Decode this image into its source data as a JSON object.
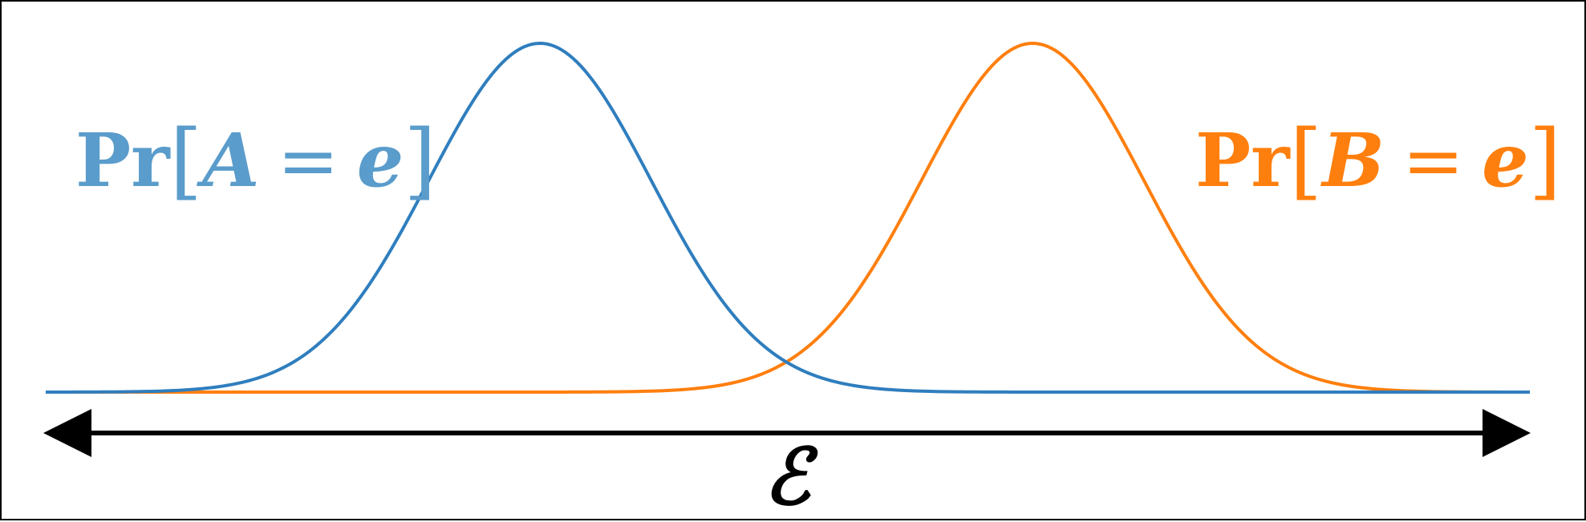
{
  "colors": {
    "distribution_a": "#2F7EBE",
    "distribution_a_label": "#5A9CCB",
    "distribution_b": "#FF7F0E",
    "domain_arrow": "#000000"
  },
  "label_a": {
    "prefix": "Pr",
    "open": "[",
    "variable": "A",
    "equals": "=",
    "value": "e",
    "close": "]"
  },
  "label_b": {
    "prefix": "Pr",
    "open": "[",
    "variable": "B",
    "equals": "=",
    "value": "e",
    "close": "]"
  },
  "domain_symbol": "ℰ",
  "curves": [
    {
      "mean": 0.333,
      "sd": 0.075
    },
    {
      "mean": 0.665,
      "sd": 0.075
    }
  ]
}
